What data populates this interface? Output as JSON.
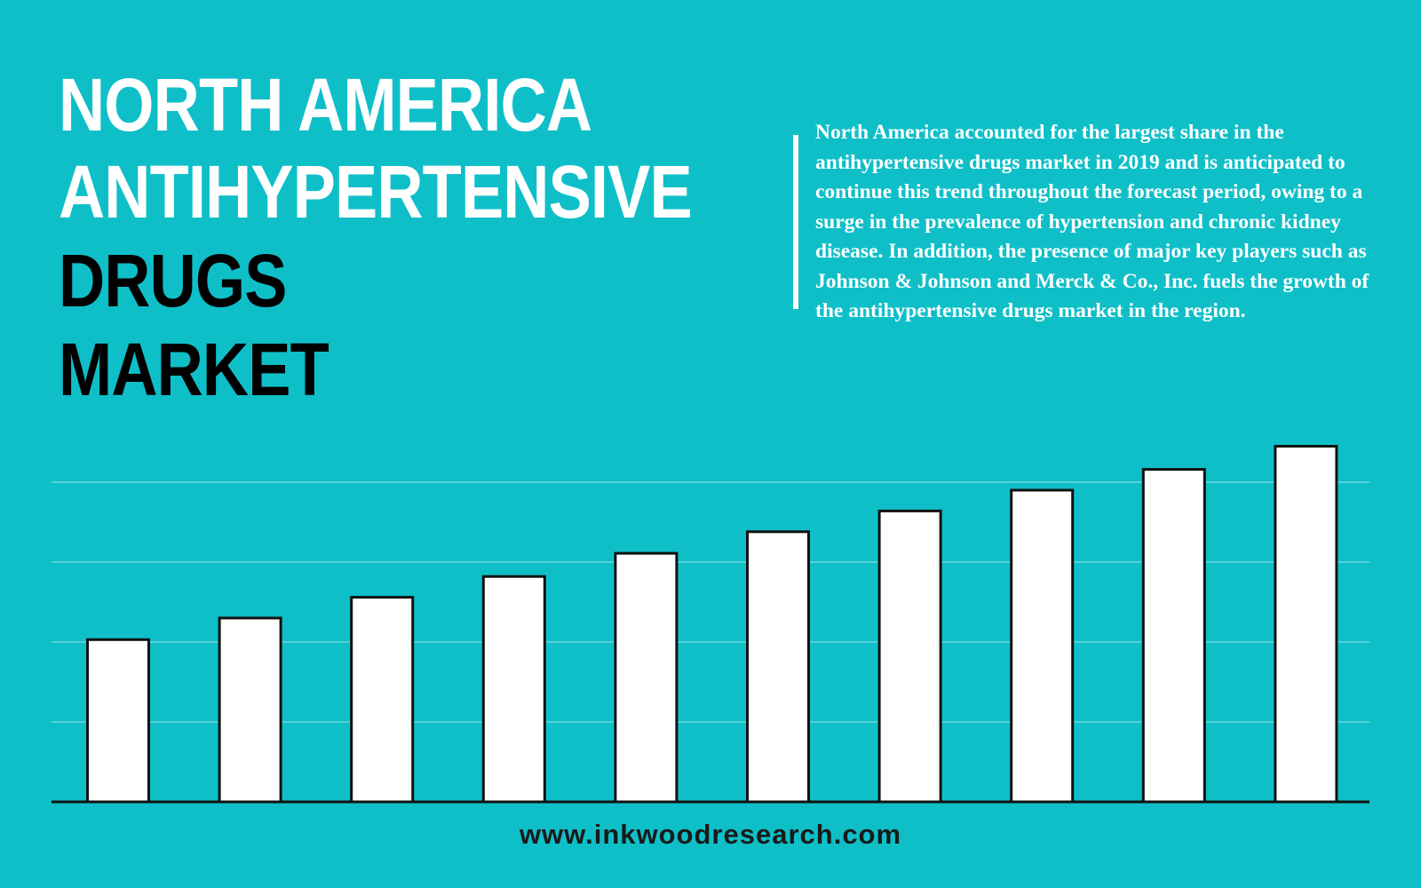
{
  "header": {
    "title_lines": [
      {
        "text": "NORTH AMERICA",
        "color": "#ffffff"
      },
      {
        "text": "ANTIHYPERTENSIVE",
        "color": "#ffffff"
      },
      {
        "text": "DRUGS",
        "color": "#000000"
      },
      {
        "text": "MARKET",
        "color": "#000000"
      }
    ]
  },
  "description": "North America accounted for the largest share in the antihypertensive drugs market in 2019 and is anticipated to continue this trend throughout the forecast period, owing to a surge in the prevalence of hypertension and chronic kidney disease. In addition, the presence of major key players such as Johnson & Johnson and Merck & Co., Inc. fuels the growth of the antihypertensive drugs market in the region.",
  "footer": {
    "url": "www.inkwoodresearch.com"
  },
  "chart_data": {
    "type": "bar",
    "categories": [
      null,
      null,
      null,
      null,
      null,
      null,
      null,
      null,
      null,
      null
    ],
    "values": [
      2.03,
      2.3,
      2.56,
      2.82,
      3.11,
      3.38,
      3.64,
      3.9,
      4.16,
      4.45
    ],
    "color": "#ffffff",
    "ylim": [
      0,
      5
    ],
    "yticks": [
      0,
      1,
      2,
      3,
      4
    ],
    "grid": true
  }
}
